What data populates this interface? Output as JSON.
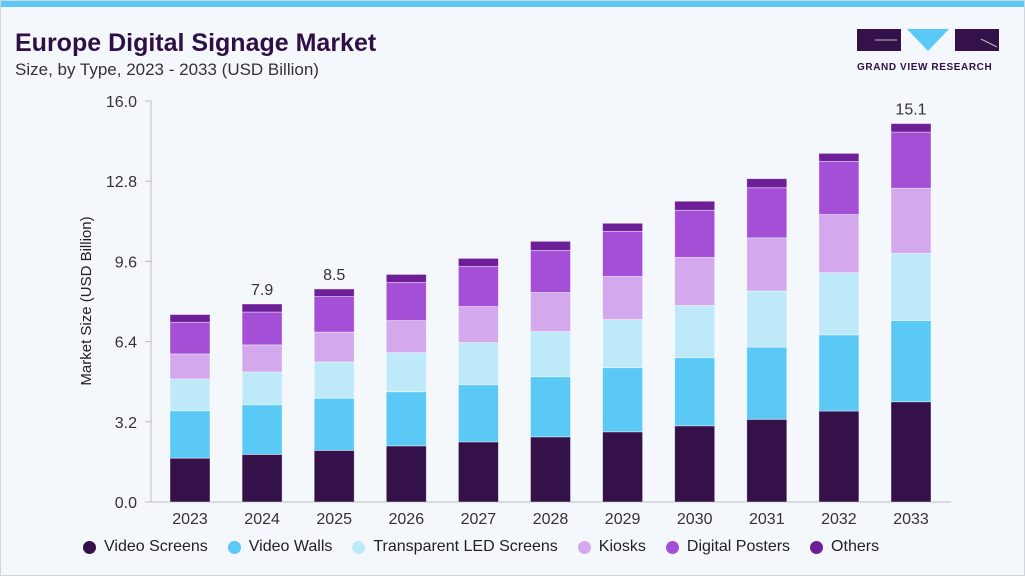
{
  "header": {
    "title": "Europe Digital Signage Market",
    "subtitle": "Size, by Type, 2023 - 2033 (USD Billion)"
  },
  "logo": {
    "text": "GRAND VIEW RESEARCH"
  },
  "chart_data": {
    "type": "bar",
    "stacked": true,
    "title": "Europe Digital Signage Market",
    "subtitle": "Size, by Type, 2023 - 2033 (USD Billion)",
    "xlabel": "",
    "ylabel": "Market Size (USD Billion)",
    "ylim": [
      0,
      16
    ],
    "yticks": [
      "0.0",
      "3.2",
      "6.4",
      "9.6",
      "12.8",
      "16.0"
    ],
    "grid": false,
    "legend": "bottom",
    "categories": [
      "2023",
      "2024",
      "2025",
      "2026",
      "2027",
      "2028",
      "2029",
      "2030",
      "2031",
      "2032",
      "2033"
    ],
    "series": [
      {
        "name": "Video Screens",
        "color": "#341148",
        "values": [
          1.75,
          1.9,
          2.06,
          2.24,
          2.4,
          2.6,
          2.8,
          3.04,
          3.3,
          3.63,
          4.0
        ]
      },
      {
        "name": "Video Walls",
        "color": "#5bc9f5",
        "values": [
          1.89,
          1.98,
          2.08,
          2.16,
          2.28,
          2.4,
          2.56,
          2.72,
          2.88,
          3.04,
          3.24
        ]
      },
      {
        "name": "Transparent LED Screens",
        "color": "#bde9f9",
        "values": [
          1.27,
          1.31,
          1.45,
          1.56,
          1.68,
          1.8,
          1.92,
          2.08,
          2.24,
          2.48,
          2.68
        ]
      },
      {
        "name": "Kiosks",
        "color": "#d3a8ec",
        "values": [
          1.0,
          1.08,
          1.19,
          1.28,
          1.44,
          1.56,
          1.72,
          1.92,
          2.12,
          2.32,
          2.6
        ]
      },
      {
        "name": "Digital Posters",
        "color": "#a450d6",
        "values": [
          1.26,
          1.31,
          1.42,
          1.52,
          1.6,
          1.68,
          1.8,
          1.88,
          2.0,
          2.12,
          2.24
        ]
      },
      {
        "name": "Others",
        "color": "#6c1f96",
        "values": [
          0.31,
          0.32,
          0.3,
          0.32,
          0.32,
          0.36,
          0.32,
          0.36,
          0.36,
          0.32,
          0.34
        ]
      }
    ],
    "data_labels": {
      "2024": "7.9",
      "2025": "8.5",
      "2033": "15.1"
    }
  }
}
